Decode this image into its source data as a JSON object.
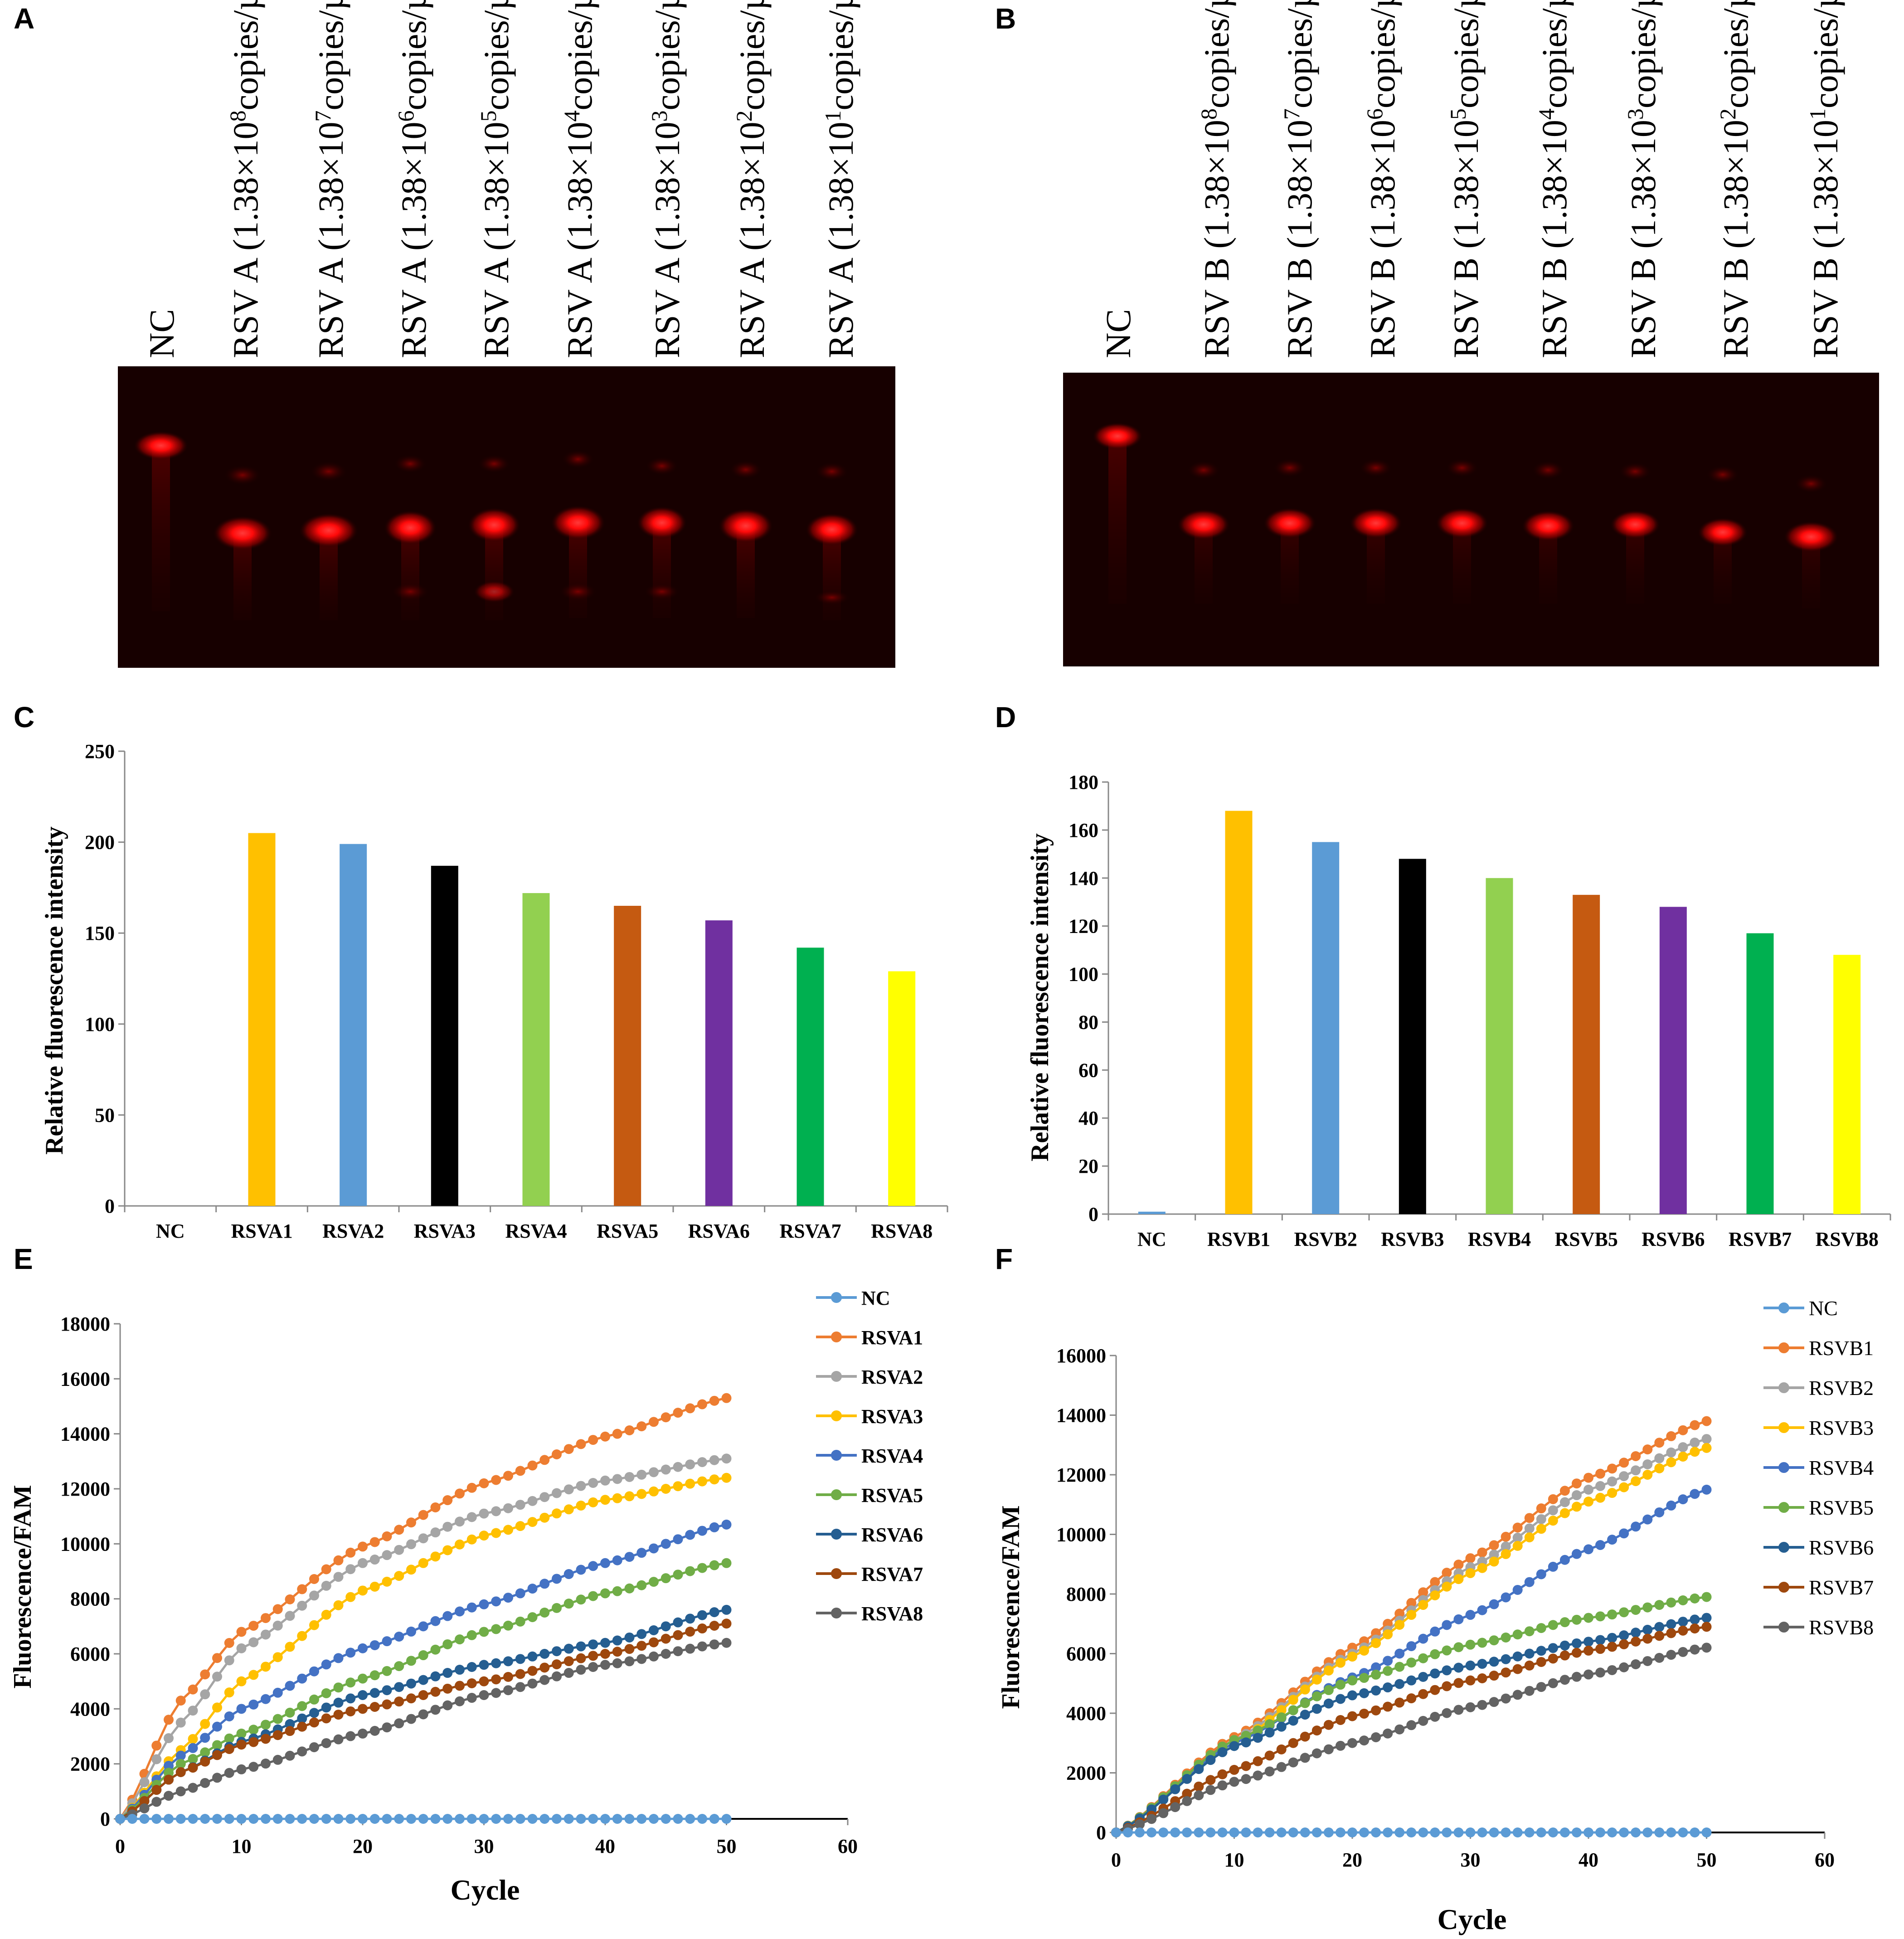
{
  "panels": [
    "A",
    "B",
    "C",
    "D",
    "E",
    "F"
  ],
  "gel_A": {
    "lanes": [
      {
        "name": "NC"
      },
      {
        "prefix": "RSV A (1.38×10",
        "exp": "8",
        "suffix": "copies/µl)"
      },
      {
        "prefix": "RSV A (1.38×10",
        "exp": "7",
        "suffix": "copies/µl)"
      },
      {
        "prefix": "RSV A (1.38×10",
        "exp": "6",
        "suffix": "copies/µl)"
      },
      {
        "prefix": "RSV A (1.38×10",
        "exp": "5",
        "suffix": "copies/µl)"
      },
      {
        "prefix": "RSV A (1.38×10",
        "exp": "4",
        "suffix": "copies/µl)"
      },
      {
        "prefix": "RSV A (1.38×10",
        "exp": "3",
        "suffix": "copies/µl)"
      },
      {
        "prefix": "RSV A (1.38×10",
        "exp": "2",
        "suffix": "copies/µl)"
      },
      {
        "prefix": "RSV A (1.38×10",
        "exp": "1",
        "suffix": "copies/µl)"
      }
    ]
  },
  "gel_B": {
    "lanes": [
      {
        "name": "NC"
      },
      {
        "prefix": "RSV B (1.38×10",
        "exp": "8",
        "suffix": "copies/µl)"
      },
      {
        "prefix": "RSV B (1.38×10",
        "exp": "7",
        "suffix": "copies/µl)"
      },
      {
        "prefix": "RSV B (1.38×10",
        "exp": "6",
        "suffix": "copies/µl)"
      },
      {
        "prefix": "RSV B (1.38×10",
        "exp": "5",
        "suffix": "copies/µl)"
      },
      {
        "prefix": "RSV B (1.38×10",
        "exp": "4",
        "suffix": "copies/µl)"
      },
      {
        "prefix": "RSV B (1.38×10",
        "exp": "3",
        "suffix": "copies/µl)"
      },
      {
        "prefix": "RSV B (1.38×10",
        "exp": "2",
        "suffix": "copies/µl)"
      },
      {
        "prefix": "RSV B (1.38×10",
        "exp": "1",
        "suffix": "copies/µl)"
      }
    ]
  },
  "chart_data": [
    {
      "id": "C",
      "type": "bar",
      "categories": [
        "NC",
        "RSVA1",
        "RSVA2",
        "RSVA3",
        "RSVA4",
        "RSVA5",
        "RSVA6",
        "RSVA7",
        "RSVA8"
      ],
      "values": [
        0,
        205,
        199,
        187,
        172,
        165,
        157,
        142,
        129
      ],
      "colors": [
        "#5b9bd5",
        "#ffc000",
        "#5b9bd5",
        "#000000",
        "#92d050",
        "#c55a11",
        "#7030a0",
        "#00b050",
        "#ffff00"
      ],
      "ylabel": "Relative fluorescence intensity",
      "xlabel": "",
      "ylim": [
        0,
        250
      ],
      "yticks": [
        0,
        50,
        100,
        150,
        200,
        250
      ]
    },
    {
      "id": "D",
      "type": "bar",
      "categories": [
        "NC",
        "RSVB1",
        "RSVB2",
        "RSVB3",
        "RSVB4",
        "RSVB5",
        "RSVB6",
        "RSVB7",
        "RSVB8"
      ],
      "values": [
        1,
        168,
        155,
        148,
        140,
        133,
        128,
        117,
        108
      ],
      "colors": [
        "#5b9bd5",
        "#ffc000",
        "#5b9bd5",
        "#000000",
        "#92d050",
        "#c55a11",
        "#7030a0",
        "#00b050",
        "#ffff00"
      ],
      "ylabel": "Relative fluorescence intensity",
      "xlabel": "",
      "ylim": [
        0,
        180
      ],
      "yticks": [
        0,
        20,
        40,
        60,
        80,
        100,
        120,
        140,
        160,
        180
      ]
    },
    {
      "id": "E",
      "type": "line",
      "xlabel": "Cycle",
      "ylabel": "Fluorescence/FAM",
      "xlim": [
        0,
        60
      ],
      "ylim": [
        0,
        18000
      ],
      "xticks": [
        0,
        10,
        20,
        30,
        40,
        50,
        60
      ],
      "yticks": [
        0,
        2000,
        4000,
        6000,
        8000,
        10000,
        12000,
        14000,
        16000,
        18000
      ],
      "x_range": [
        0,
        50
      ],
      "series": [
        {
          "name": "NC",
          "color": "#5b9bd5",
          "anchors": [
            [
              0,
              0
            ],
            [
              50,
              0
            ]
          ]
        },
        {
          "name": "RSVA1",
          "color": "#ed7d31",
          "anchors": [
            [
              0,
              0
            ],
            [
              5,
              4300
            ],
            [
              10,
              6800
            ],
            [
              20,
              9900
            ],
            [
              30,
              12200
            ],
            [
              40,
              13900
            ],
            [
              50,
              15300
            ]
          ]
        },
        {
          "name": "RSVA2",
          "color": "#a5a5a5",
          "anchors": [
            [
              0,
              0
            ],
            [
              5,
              3500
            ],
            [
              10,
              6200
            ],
            [
              20,
              9300
            ],
            [
              30,
              11100
            ],
            [
              40,
              12300
            ],
            [
              50,
              13100
            ]
          ]
        },
        {
          "name": "RSVA3",
          "color": "#ffc000",
          "anchors": [
            [
              0,
              0
            ],
            [
              5,
              2500
            ],
            [
              10,
              5000
            ],
            [
              20,
              8300
            ],
            [
              30,
              10300
            ],
            [
              40,
              11600
            ],
            [
              50,
              12400
            ]
          ]
        },
        {
          "name": "RSVA4",
          "color": "#4472c4",
          "anchors": [
            [
              0,
              0
            ],
            [
              5,
              2300
            ],
            [
              10,
              4000
            ],
            [
              20,
              6200
            ],
            [
              30,
              7800
            ],
            [
              40,
              9300
            ],
            [
              50,
              10700
            ]
          ]
        },
        {
          "name": "RSVA5",
          "color": "#70ad47",
          "anchors": [
            [
              0,
              0
            ],
            [
              5,
              2000
            ],
            [
              10,
              3100
            ],
            [
              20,
              5100
            ],
            [
              30,
              6800
            ],
            [
              40,
              8200
            ],
            [
              50,
              9300
            ]
          ]
        },
        {
          "name": "RSVA6",
          "color": "#255e91",
          "anchors": [
            [
              0,
              0
            ],
            [
              5,
              1700
            ],
            [
              10,
              2800
            ],
            [
              20,
              4500
            ],
            [
              30,
              5600
            ],
            [
              40,
              6400
            ],
            [
              50,
              7600
            ]
          ]
        },
        {
          "name": "RSVA7",
          "color": "#9e480e",
          "anchors": [
            [
              0,
              0
            ],
            [
              5,
              1700
            ],
            [
              10,
              2700
            ],
            [
              20,
              4000
            ],
            [
              30,
              5000
            ],
            [
              40,
              6000
            ],
            [
              50,
              7100
            ]
          ]
        },
        {
          "name": "RSVA8",
          "color": "#636363",
          "anchors": [
            [
              0,
              0
            ],
            [
              5,
              1000
            ],
            [
              10,
              1800
            ],
            [
              20,
              3100
            ],
            [
              30,
              4500
            ],
            [
              40,
              5600
            ],
            [
              50,
              6400
            ]
          ]
        }
      ]
    },
    {
      "id": "F",
      "type": "line",
      "xlabel": "Cycle",
      "ylabel": "Fluorescence/FAM",
      "xlim": [
        0,
        60
      ],
      "ylim": [
        0,
        16000
      ],
      "xticks": [
        0,
        10,
        20,
        30,
        40,
        50,
        60
      ],
      "yticks": [
        0,
        2000,
        4000,
        6000,
        8000,
        10000,
        12000,
        14000,
        16000
      ],
      "x_range": [
        0,
        50
      ],
      "series": [
        {
          "name": "NC",
          "color": "#5b9bd5",
          "anchors": [
            [
              0,
              0
            ],
            [
              50,
              0
            ]
          ]
        },
        {
          "name": "RSVB1",
          "color": "#ed7d31",
          "anchors": [
            [
              0,
              0
            ],
            [
              10,
              3200
            ],
            [
              20,
              6200
            ],
            [
              30,
              9200
            ],
            [
              40,
              11900
            ],
            [
              50,
              13800
            ]
          ]
        },
        {
          "name": "RSVB2",
          "color": "#a5a5a5",
          "anchors": [
            [
              0,
              0
            ],
            [
              10,
              3100
            ],
            [
              20,
              6000
            ],
            [
              30,
              8900
            ],
            [
              40,
              11500
            ],
            [
              50,
              13200
            ]
          ]
        },
        {
          "name": "RSVB3",
          "color": "#ffc000",
          "anchors": [
            [
              0,
              0
            ],
            [
              10,
              3000
            ],
            [
              20,
              5900
            ],
            [
              30,
              8700
            ],
            [
              40,
              11100
            ],
            [
              50,
              12900
            ]
          ]
        },
        {
          "name": "RSVB4",
          "color": "#4472c4",
          "anchors": [
            [
              0,
              0
            ],
            [
              10,
              3000
            ],
            [
              20,
              5200
            ],
            [
              30,
              7300
            ],
            [
              40,
              9500
            ],
            [
              50,
              11500
            ]
          ]
        },
        {
          "name": "RSVB5",
          "color": "#70ad47",
          "anchors": [
            [
              0,
              0
            ],
            [
              10,
              3100
            ],
            [
              20,
              5100
            ],
            [
              30,
              6300
            ],
            [
              40,
              7200
            ],
            [
              50,
              7900
            ]
          ]
        },
        {
          "name": "RSVB6",
          "color": "#255e91",
          "anchors": [
            [
              0,
              0
            ],
            [
              10,
              2900
            ],
            [
              20,
              4600
            ],
            [
              30,
              5600
            ],
            [
              40,
              6400
            ],
            [
              50,
              7200
            ]
          ]
        },
        {
          "name": "RSVB7",
          "color": "#9e480e",
          "anchors": [
            [
              0,
              0
            ],
            [
              10,
              2100
            ],
            [
              20,
              3900
            ],
            [
              30,
              5100
            ],
            [
              40,
              6100
            ],
            [
              50,
              6900
            ]
          ]
        },
        {
          "name": "RSVB8",
          "color": "#636363",
          "anchors": [
            [
              0,
              0
            ],
            [
              10,
              1700
            ],
            [
              20,
              3000
            ],
            [
              30,
              4200
            ],
            [
              40,
              5300
            ],
            [
              50,
              6200
            ]
          ]
        }
      ]
    }
  ]
}
